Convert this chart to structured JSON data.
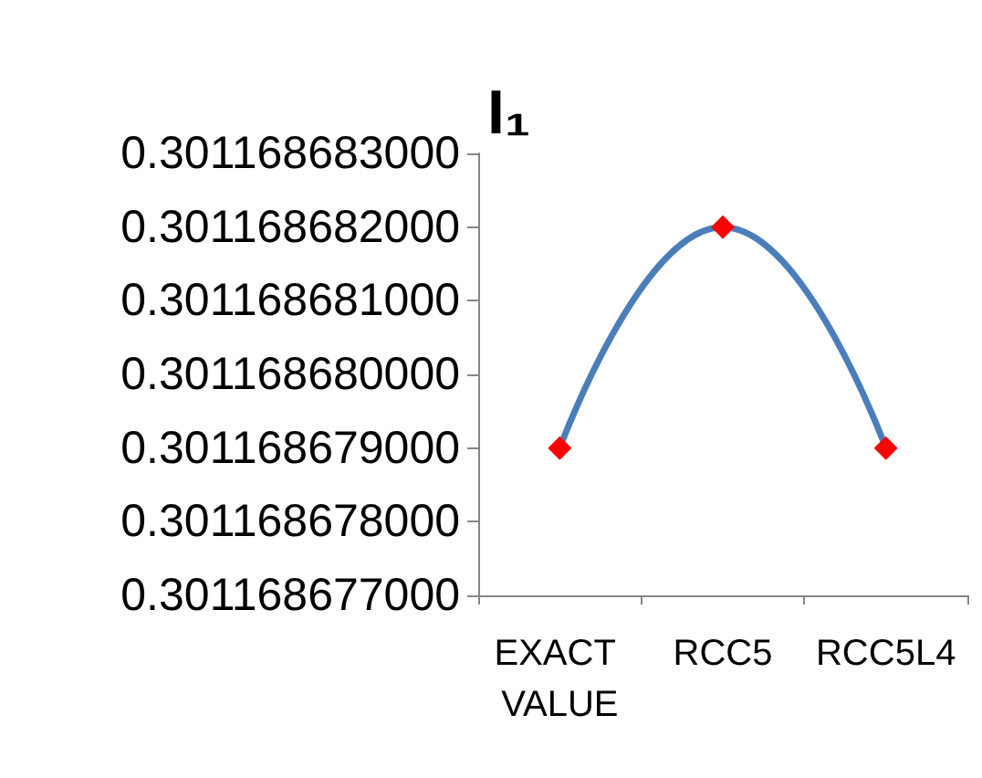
{
  "chart_data": {
    "type": "line",
    "title": "I₁",
    "categories": [
      "EXACT VALUE",
      "RCC5",
      "RCC5L4"
    ],
    "series": [
      {
        "color": "#4a7ebb",
        "colors": [
          "#ff0000",
          "#ff0000",
          "#ff0000"
        ],
        "values": [
          0.301168679,
          0.301168682,
          0.301168679
        ]
      }
    ],
    "ylim": [
      0.301168677,
      0.301168683
    ],
    "yticks": [
      {
        "value": 0.301168677,
        "label": "0.301168677000"
      },
      {
        "value": 0.301168678,
        "label": "0.301168678000"
      },
      {
        "value": 0.301168679,
        "label": "0.301168679000"
      },
      {
        "value": 0.30116868,
        "label": "0.301168680000"
      },
      {
        "value": 0.301168681,
        "label": "0.301168681000"
      },
      {
        "value": 0.301168682,
        "label": "0.301168682000"
      },
      {
        "value": 0.301168683,
        "label": "0.301168683000"
      }
    ],
    "marker": "diamond",
    "line_style": "solid"
  }
}
